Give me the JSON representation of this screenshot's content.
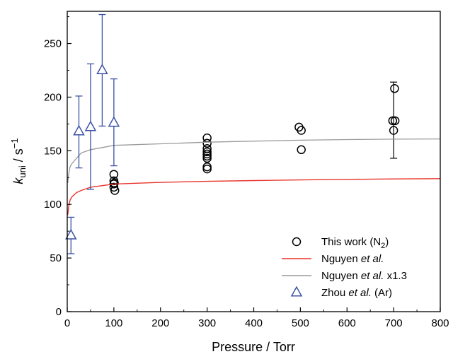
{
  "chart_data": {
    "type": "scatter",
    "xlabel": "Pressure / Torr",
    "ylabel": {
      "main": "k",
      "sub": "uni",
      "unit": " / s",
      "sup": "−1"
    },
    "xlim": [
      0,
      800
    ],
    "ylim": [
      0,
      280
    ],
    "xticks": [
      "0",
      "100",
      "200",
      "300",
      "400",
      "500",
      "600",
      "700",
      "800"
    ],
    "yticks": [
      "0",
      "50",
      "100",
      "150",
      "200",
      "250"
    ],
    "grid": false,
    "legend_position": "bottom-right",
    "colors": {
      "this_work": "#000000",
      "nguyen": "#e8342c",
      "nguyen_x13": "#9a9a9a",
      "zhou": "#3b52a4"
    },
    "series": [
      {
        "key": "this_work",
        "legend": {
          "text": "This work (N",
          "sub": "2",
          "after": ")"
        },
        "marker": "circle",
        "points": [
          {
            "x": 100,
            "y": 128
          },
          {
            "x": 100,
            "y": 122
          },
          {
            "x": 100,
            "y": 119
          },
          {
            "x": 100,
            "y": 116
          },
          {
            "x": 102,
            "y": 113
          },
          {
            "x": 101,
            "y": 120
          },
          {
            "x": 300,
            "y": 162
          },
          {
            "x": 300,
            "y": 157
          },
          {
            "x": 300,
            "y": 152
          },
          {
            "x": 300,
            "y": 149
          },
          {
            "x": 300,
            "y": 147
          },
          {
            "x": 300,
            "y": 145
          },
          {
            "x": 300,
            "y": 143
          },
          {
            "x": 300,
            "y": 135
          },
          {
            "x": 300,
            "y": 133
          },
          {
            "x": 497,
            "y": 172
          },
          {
            "x": 502,
            "y": 169
          },
          {
            "x": 502,
            "y": 151
          },
          {
            "x": 698,
            "y": 178
          },
          {
            "x": 702,
            "y": 208
          },
          {
            "x": 703,
            "y": 178
          },
          {
            "x": 700,
            "y": 169
          }
        ],
        "errorbars": [
          {
            "x": 700,
            "low": 143,
            "high": 214
          }
        ]
      },
      {
        "key": "nguyen",
        "legend": {
          "text": "Nguyen ",
          "italic": "et al."
        },
        "marker": "line",
        "points": [
          {
            "x": 1,
            "y": 90
          },
          {
            "x": 3,
            "y": 98
          },
          {
            "x": 6,
            "y": 104
          },
          {
            "x": 10,
            "y": 107
          },
          {
            "x": 20,
            "y": 111
          },
          {
            "x": 30,
            "y": 113
          },
          {
            "x": 50,
            "y": 116
          },
          {
            "x": 75,
            "y": 117.5
          },
          {
            "x": 100,
            "y": 119
          },
          {
            "x": 200,
            "y": 120.5
          },
          {
            "x": 300,
            "y": 121.5
          },
          {
            "x": 400,
            "y": 122.2
          },
          {
            "x": 500,
            "y": 122.8
          },
          {
            "x": 600,
            "y": 123.3
          },
          {
            "x": 700,
            "y": 123.7
          },
          {
            "x": 800,
            "y": 124
          }
        ]
      },
      {
        "key": "nguyen_x13",
        "legend": {
          "text": "Nguyen ",
          "italic": "et al.",
          "after": " x1.3"
        },
        "marker": "line",
        "points": [
          {
            "x": 1,
            "y": 120
          },
          {
            "x": 3,
            "y": 128
          },
          {
            "x": 6,
            "y": 135
          },
          {
            "x": 10,
            "y": 138
          },
          {
            "x": 20,
            "y": 143
          },
          {
            "x": 30,
            "y": 148
          },
          {
            "x": 50,
            "y": 151
          },
          {
            "x": 75,
            "y": 153
          },
          {
            "x": 100,
            "y": 155
          },
          {
            "x": 200,
            "y": 156.5
          },
          {
            "x": 300,
            "y": 158
          },
          {
            "x": 400,
            "y": 159
          },
          {
            "x": 500,
            "y": 159.8
          },
          {
            "x": 600,
            "y": 160.4
          },
          {
            "x": 700,
            "y": 160.8
          },
          {
            "x": 800,
            "y": 161
          }
        ]
      },
      {
        "key": "zhou",
        "legend": {
          "text": "Zhou ",
          "italic": "et al.",
          "after": " (Ar)"
        },
        "marker": "triangle",
        "points": [
          {
            "x": 8,
            "y": 71,
            "low": 54,
            "high": 88
          },
          {
            "x": 25,
            "y": 168,
            "low": 134,
            "high": 201
          },
          {
            "x": 50,
            "y": 172,
            "low": 114,
            "high": 231
          },
          {
            "x": 75,
            "y": 225,
            "low": 173,
            "high": 277
          },
          {
            "x": 100,
            "y": 176,
            "low": 136,
            "high": 217
          }
        ]
      }
    ]
  }
}
